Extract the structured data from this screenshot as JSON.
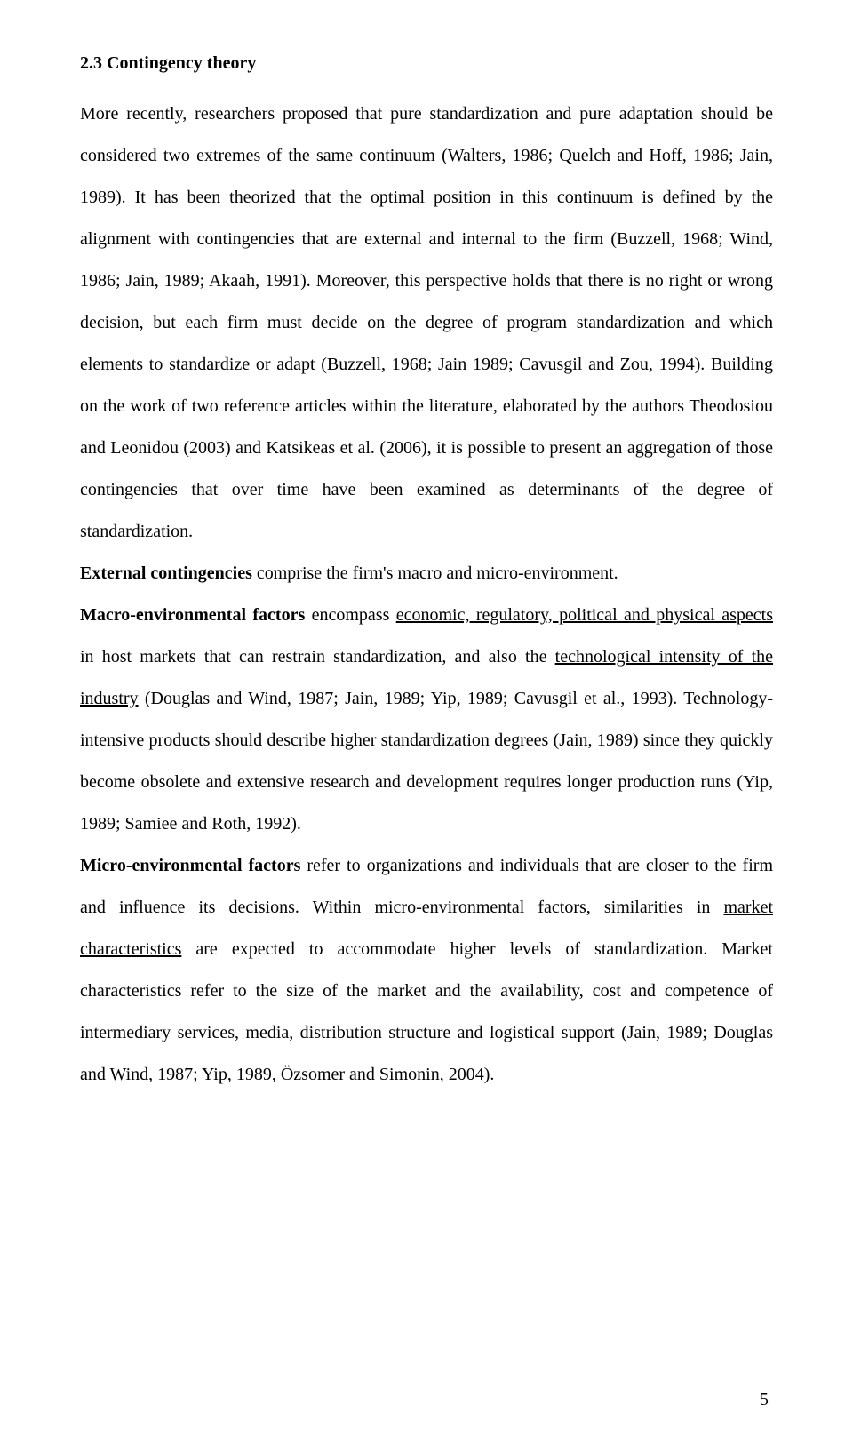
{
  "heading": "2.3 Contingency theory",
  "p1_a": "More recently, researchers proposed that pure standardization and pure adaptation should be considered two extremes of the same continuum (Walters, 1986; Quelch and Hoff, 1986; Jain, 1989). It has been theorized that the optimal position in this continuum is defined by the alignment with contingencies that are external and internal to the firm (Buzzell, 1968; Wind, 1986; Jain, 1989; Akaah, 1991). Moreover, this perspective holds that there is no right or wrong decision, but each firm must decide on the degree of program standardization and which elements to standardize or adapt (Buzzell, 1968; Jain 1989; Cavusgil and Zou, 1994). Building on the work of two reference articles within the literature, elaborated by the authors Theodosiou and Leonidou (2003) and Katsikeas et al. (2006), it is possible to present an aggregation of those contingencies that over time have been examined as determinants of the degree of standardization.",
  "external_bold": "External contingencies",
  "external_rest": " comprise the firm's macro and micro-environment.",
  "macro_bold": "Macro-environmental factors",
  "macro_a": " encompass ",
  "macro_u1": "economic, regulatory, political and physical aspects",
  "macro_b": " in host markets that can restrain standardization, and also the ",
  "macro_u2": "technological intensity of the industry",
  "macro_c": " (Douglas and Wind, 1987; Jain, 1989; Yip, 1989; Cavusgil et al., 1993). Technology-intensive products should describe higher standardization degrees (Jain, 1989) since they quickly become obsolete and extensive research and development requires longer production runs (Yip, 1989; Samiee and Roth, 1992).",
  "micro_bold": "Micro-environmental factors",
  "micro_a": " refer to organizations and individuals that are closer to the firm and influence its decisions. Within micro-environmental factors, similarities in ",
  "micro_u1": "market characteristics",
  "micro_b": " are expected to accommodate higher levels of standardization. Market characteristics refer to the size of the market and the availability, cost and competence of intermediary services, media, distribution structure and logistical support (Jain, 1989; Douglas and Wind, 1987; Yip, 1989, Özsomer and Simonin, 2004).",
  "page_number": "5"
}
